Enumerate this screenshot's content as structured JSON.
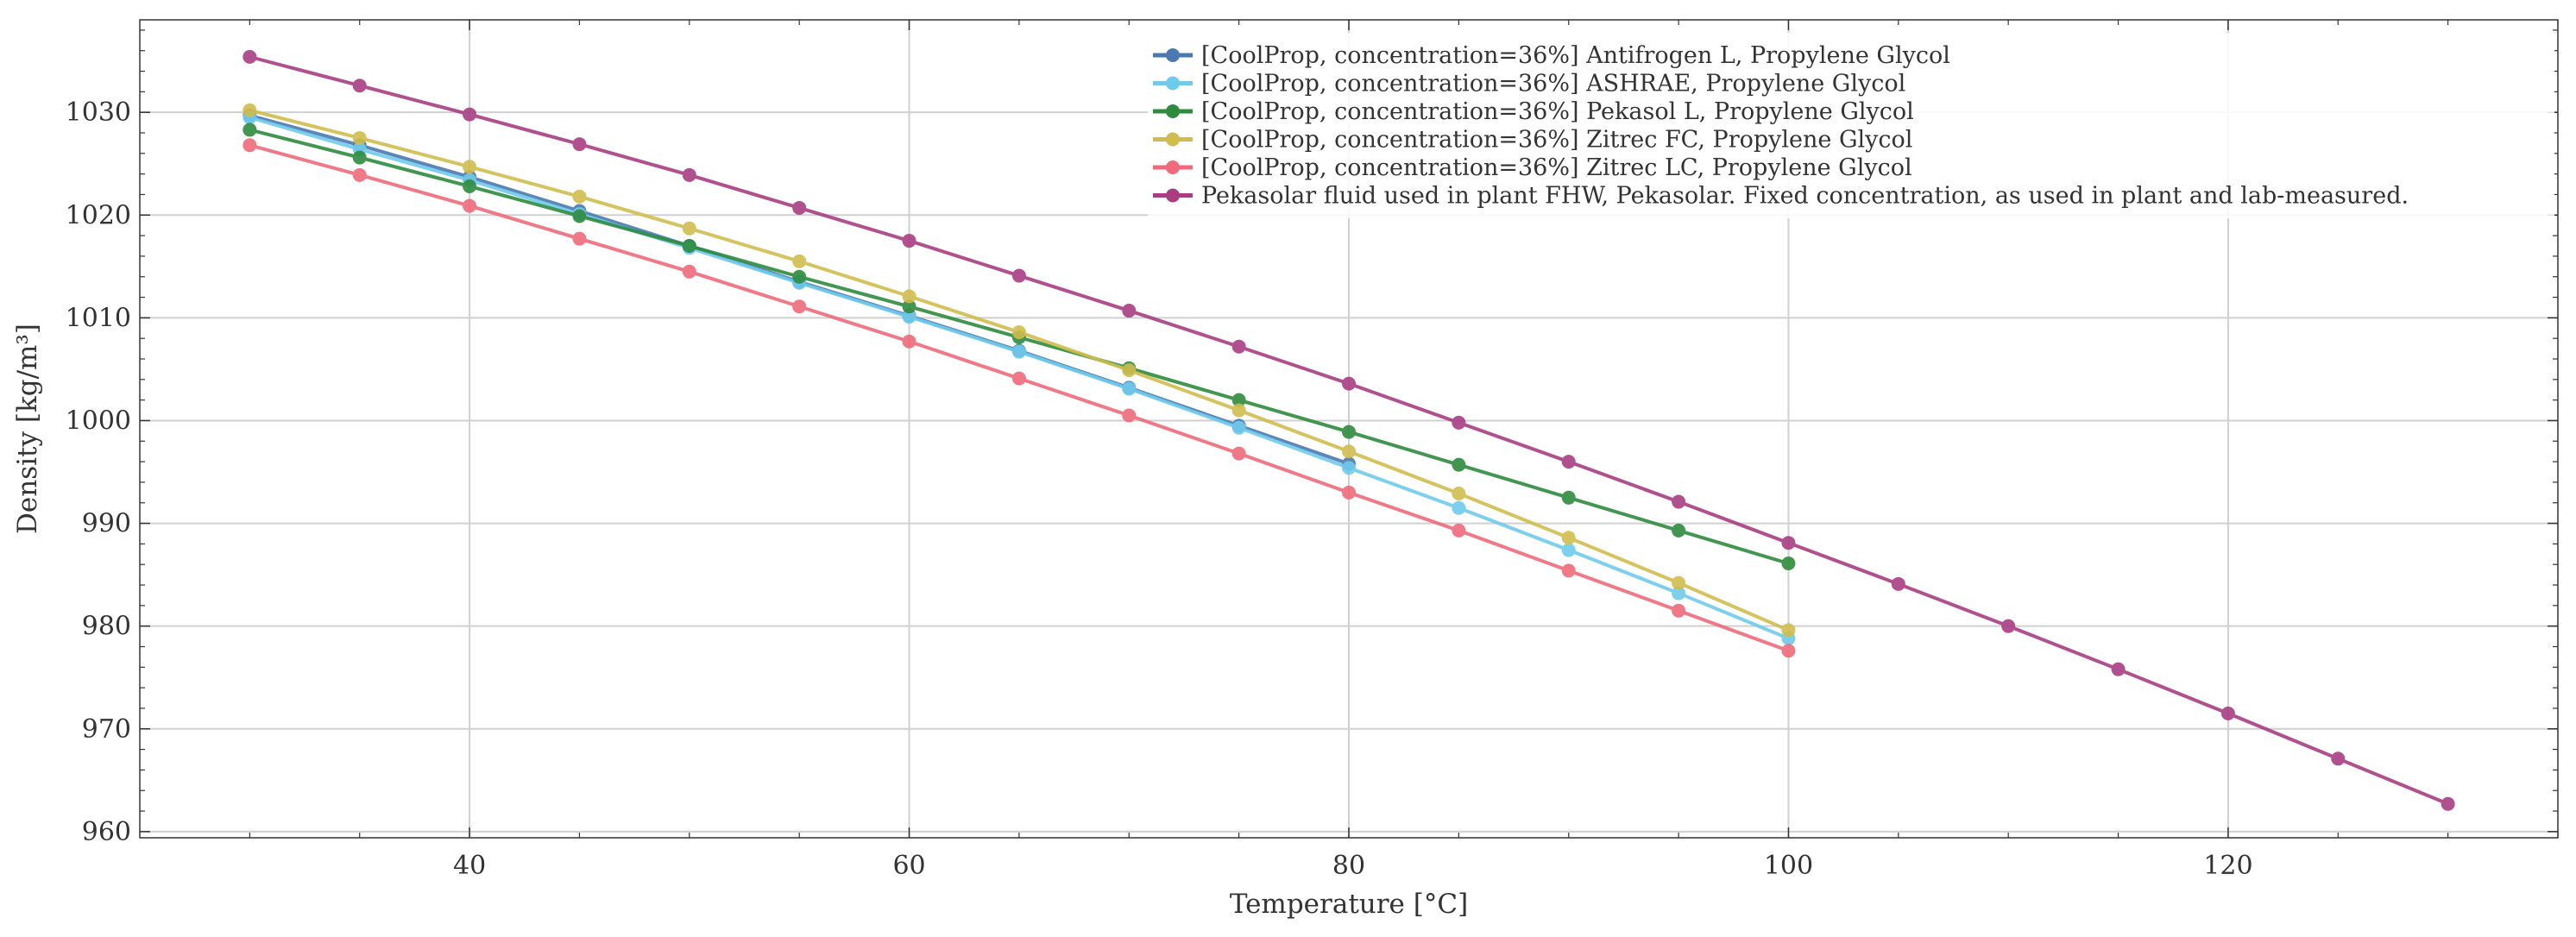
{
  "chart_data": {
    "type": "line",
    "title": "",
    "xlabel": "Temperature [°C]",
    "ylabel": "Density [kg/m³]",
    "xlim": [
      25,
      135
    ],
    "ylim": [
      959.4,
      1039
    ],
    "xticks": [
      40,
      60,
      80,
      100,
      120
    ],
    "yticks": [
      960,
      970,
      980,
      990,
      1000,
      1010,
      1020,
      1030
    ],
    "grid": true,
    "legend_position": "top-right",
    "series": [
      {
        "name": "[CoolProp, concentration=36%] Antifrogen L, Propylene Glycol",
        "color": "#4a7ab0",
        "x": [
          30,
          35,
          40,
          45,
          50,
          55,
          60,
          65,
          70,
          75,
          80
        ],
        "y": [
          1029.7,
          1026.8,
          1023.7,
          1020.4,
          1017.0,
          1013.5,
          1010.2,
          1006.8,
          1003.2,
          999.5,
          995.8
        ]
      },
      {
        "name": "[CoolProp, concentration=36%] ASHRAE, Propylene Glycol",
        "color": "#6fcbec",
        "x": [
          30,
          35,
          40,
          45,
          50,
          55,
          60,
          65,
          70,
          75,
          80,
          85,
          90,
          95,
          100
        ],
        "y": [
          1029.5,
          1026.4,
          1023.4,
          1020.1,
          1016.8,
          1013.4,
          1010.1,
          1006.7,
          1003.1,
          999.3,
          995.4,
          991.5,
          987.4,
          983.2,
          978.8
        ]
      },
      {
        "name": "[CoolProp, concentration=36%] Pekasol L, Propylene Glycol",
        "color": "#2e8b3e",
        "x": [
          30,
          35,
          40,
          45,
          50,
          55,
          60,
          65,
          70,
          75,
          80,
          85,
          90,
          95,
          100
        ],
        "y": [
          1028.3,
          1025.6,
          1022.8,
          1019.9,
          1017.0,
          1014.0,
          1011.1,
          1008.1,
          1005.1,
          1002.0,
          998.9,
          995.7,
          992.5,
          989.3,
          986.1
        ]
      },
      {
        "name": "[CoolProp, concentration=36%] Zitrec FC, Propylene Glycol",
        "color": "#d0bd4e",
        "x": [
          30,
          35,
          40,
          45,
          50,
          55,
          60,
          65,
          70,
          75,
          80,
          85,
          90,
          95,
          100
        ],
        "y": [
          1030.2,
          1027.5,
          1024.7,
          1021.8,
          1018.7,
          1015.5,
          1012.1,
          1008.6,
          1004.9,
          1001.0,
          997.0,
          992.9,
          988.6,
          984.2,
          979.6
        ]
      },
      {
        "name": "[CoolProp, concentration=36%] Zitrec LC, Propylene Glycol",
        "color": "#ef6b7b",
        "x": [
          30,
          35,
          40,
          45,
          50,
          55,
          60,
          65,
          70,
          75,
          80,
          85,
          90,
          95,
          100
        ],
        "y": [
          1026.8,
          1023.9,
          1020.9,
          1017.7,
          1014.5,
          1011.1,
          1007.7,
          1004.1,
          1000.5,
          996.8,
          993.0,
          989.3,
          985.4,
          981.5,
          977.6
        ]
      },
      {
        "name": "Pekasolar fluid used in plant FHW, Pekasolar. Fixed concentration, as used in plant and lab-measured.",
        "color": "#a83e82",
        "x": [
          30,
          35,
          40,
          45,
          50,
          55,
          60,
          65,
          70,
          75,
          80,
          85,
          90,
          95,
          100,
          105,
          110,
          115,
          120,
          125,
          130
        ],
        "y": [
          1035.4,
          1032.6,
          1029.8,
          1026.9,
          1023.9,
          1020.7,
          1017.5,
          1014.1,
          1010.7,
          1007.2,
          1003.6,
          999.8,
          996.0,
          992.1,
          988.1,
          984.1,
          980.0,
          975.8,
          971.5,
          967.1,
          962.7
        ]
      }
    ]
  }
}
